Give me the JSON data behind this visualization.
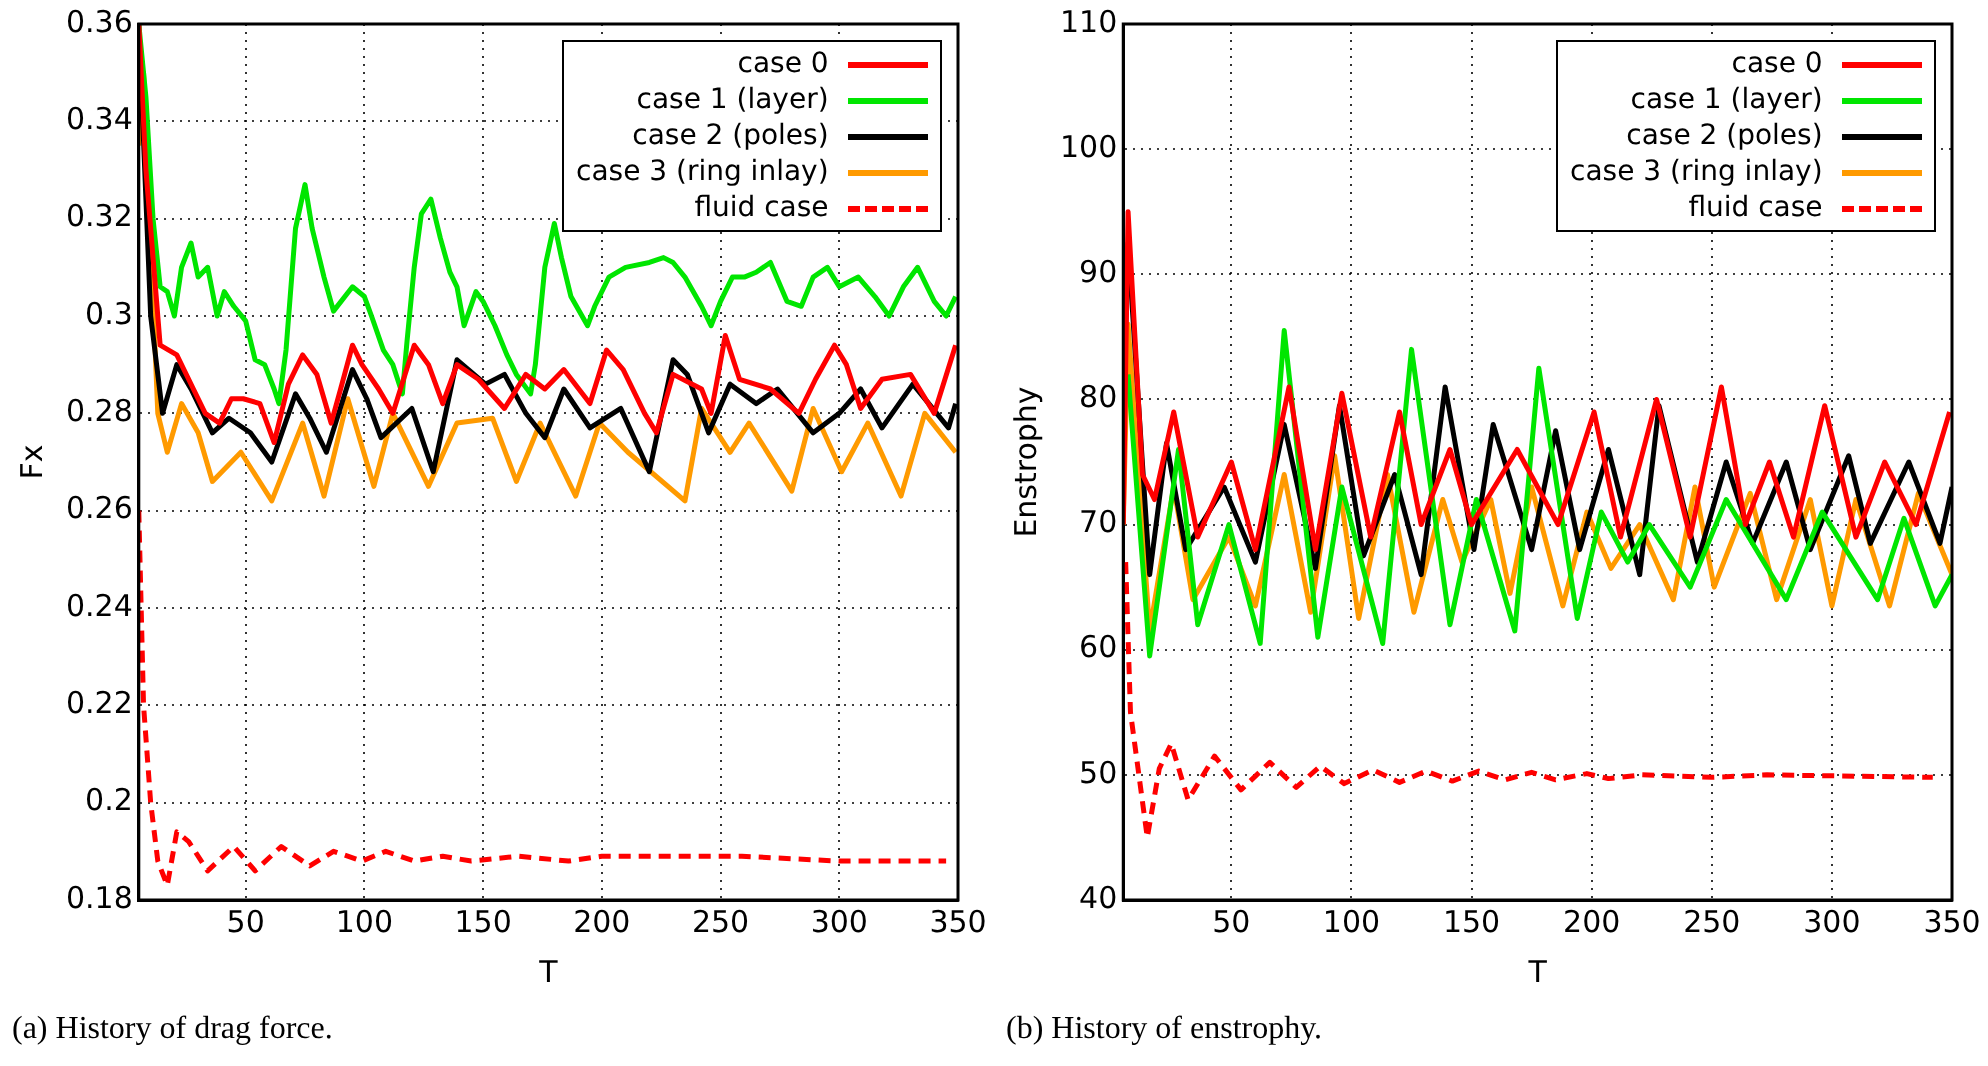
{
  "chart_data": [
    {
      "type": "line",
      "xlabel": "T",
      "ylabel": "Fx",
      "xlim": [
        5,
        350
      ],
      "xticks": [
        50,
        100,
        150,
        200,
        250,
        300,
        350
      ],
      "ylim": [
        0.18,
        0.36
      ],
      "yticks": [
        0.18,
        0.2,
        0.22,
        0.24,
        0.26,
        0.28,
        0.3,
        0.32,
        0.34,
        0.36
      ],
      "grid": true,
      "legend": "top right",
      "marker": "none",
      "annotations": [
        "(a) History of drag force."
      ],
      "series": [
        {
          "name": "case 0",
          "color": "#ff0000",
          "x": [
            5,
            8,
            14,
            21,
            28,
            33,
            39,
            44,
            49,
            56,
            62,
            68,
            74,
            80,
            86,
            90,
            95,
            99,
            106,
            112,
            121,
            127,
            133,
            139,
            148,
            159,
            168,
            176,
            184,
            195,
            202,
            209,
            218,
            223,
            230,
            242,
            246,
            252,
            258,
            271,
            283,
            290,
            298,
            303,
            309,
            318,
            330,
            340,
            349
          ],
          "values": [
            0.36,
            0.33,
            0.294,
            0.292,
            0.285,
            0.28,
            0.278,
            0.283,
            0.283,
            0.282,
            0.274,
            0.286,
            0.292,
            0.288,
            0.278,
            0.285,
            0.294,
            0.29,
            0.285,
            0.28,
            0.294,
            0.29,
            0.282,
            0.29,
            0.287,
            0.281,
            0.288,
            0.285,
            0.289,
            0.282,
            0.293,
            0.289,
            0.28,
            0.276,
            0.288,
            0.285,
            0.28,
            0.296,
            0.287,
            0.285,
            0.28,
            0.287,
            0.294,
            0.29,
            0.281,
            0.287,
            0.288,
            0.28,
            0.294
          ]
        },
        {
          "name": "case 1 (layer)",
          "color": "#00e600",
          "x": [
            5,
            8,
            11,
            14,
            17,
            20,
            23,
            27,
            30,
            34,
            38,
            41,
            45,
            50,
            54,
            58,
            62,
            64,
            67,
            71,
            75,
            78,
            83,
            87,
            95,
            100,
            103,
            108,
            112,
            116,
            118,
            121,
            124,
            128,
            132,
            136,
            139,
            142,
            147,
            150,
            155,
            160,
            164,
            170,
            172,
            176,
            180,
            183,
            187,
            194,
            197,
            203,
            210,
            220,
            226,
            230,
            235,
            242,
            246,
            250,
            255,
            260,
            265,
            271,
            278,
            284,
            289,
            295,
            300,
            308,
            315,
            321,
            327,
            333,
            340,
            345,
            349
          ],
          "values": [
            0.36,
            0.345,
            0.32,
            0.306,
            0.305,
            0.3,
            0.31,
            0.315,
            0.308,
            0.31,
            0.3,
            0.305,
            0.302,
            0.299,
            0.291,
            0.29,
            0.285,
            0.282,
            0.293,
            0.318,
            0.327,
            0.318,
            0.308,
            0.301,
            0.306,
            0.304,
            0.3,
            0.293,
            0.29,
            0.284,
            0.295,
            0.31,
            0.321,
            0.324,
            0.316,
            0.309,
            0.306,
            0.298,
            0.305,
            0.303,
            0.298,
            0.292,
            0.288,
            0.284,
            0.29,
            0.31,
            0.319,
            0.312,
            0.304,
            0.298,
            0.302,
            0.308,
            0.31,
            0.311,
            0.312,
            0.311,
            0.308,
            0.302,
            0.298,
            0.303,
            0.308,
            0.308,
            0.309,
            0.311,
            0.303,
            0.302,
            0.308,
            0.31,
            0.306,
            0.308,
            0.304,
            0.3,
            0.306,
            0.31,
            0.303,
            0.3,
            0.304
          ]
        },
        {
          "name": "case 2 (poles)",
          "color": "#000000",
          "x": [
            5,
            10,
            15,
            21,
            27,
            36,
            43,
            52,
            61,
            71,
            77,
            84,
            95,
            101,
            107,
            120,
            129,
            139,
            151,
            159,
            168,
            176,
            184,
            195,
            208,
            220,
            230,
            236,
            245,
            254,
            265,
            274,
            289,
            300,
            309,
            318,
            331,
            346,
            349
          ],
          "values": [
            0.36,
            0.3,
            0.28,
            0.29,
            0.285,
            0.276,
            0.279,
            0.276,
            0.27,
            0.284,
            0.279,
            0.272,
            0.289,
            0.283,
            0.275,
            0.281,
            0.268,
            0.291,
            0.286,
            0.288,
            0.28,
            0.275,
            0.285,
            0.277,
            0.281,
            0.268,
            0.291,
            0.288,
            0.276,
            0.286,
            0.282,
            0.285,
            0.276,
            0.28,
            0.285,
            0.277,
            0.286,
            0.277,
            0.282
          ]
        },
        {
          "name": "case 3 (ring inlay)",
          "color": "#ff9a00",
          "x": [
            5,
            7,
            13,
            17,
            23,
            30,
            36,
            48,
            61,
            74,
            83,
            93,
            104,
            112,
            127,
            139,
            154,
            164,
            174,
            189,
            199,
            211,
            235,
            242,
            254,
            262,
            280,
            289,
            301,
            312,
            326,
            336,
            349
          ],
          "values": [
            0.335,
            0.35,
            0.28,
            0.272,
            0.282,
            0.276,
            0.266,
            0.272,
            0.262,
            0.278,
            0.263,
            0.283,
            0.265,
            0.28,
            0.265,
            0.278,
            0.279,
            0.266,
            0.278,
            0.263,
            0.278,
            0.272,
            0.262,
            0.281,
            0.272,
            0.278,
            0.264,
            0.281,
            0.268,
            0.278,
            0.263,
            0.28,
            0.272
          ]
        },
        {
          "name": "fluid case",
          "color": "#ff0000",
          "line_style": "dashed",
          "x": [
            5,
            7,
            10,
            13,
            17,
            21,
            26,
            34,
            45,
            54,
            65,
            77,
            87,
            99,
            109,
            121,
            133,
            145,
            165,
            186,
            200,
            230,
            259,
            300,
            345
          ],
          "values": [
            0.26,
            0.22,
            0.2,
            0.188,
            0.183,
            0.194,
            0.192,
            0.186,
            0.191,
            0.186,
            0.191,
            0.187,
            0.19,
            0.188,
            0.19,
            0.188,
            0.189,
            0.188,
            0.189,
            0.188,
            0.189,
            0.189,
            0.189,
            0.188,
            0.188
          ]
        }
      ]
    },
    {
      "type": "line",
      "xlabel": "T",
      "ylabel": "Enstrophy",
      "xlim": [
        5,
        350
      ],
      "xticks": [
        50,
        100,
        150,
        200,
        250,
        300,
        350
      ],
      "ylim": [
        40,
        110
      ],
      "yticks": [
        40,
        50,
        60,
        70,
        80,
        90,
        100,
        110
      ],
      "grid": true,
      "legend": "top right",
      "marker": "none",
      "annotations": [
        "(b) History of enstrophy."
      ],
      "series": [
        {
          "name": "case 0",
          "color": "#ff0000",
          "x": [
            5,
            7,
            13,
            18,
            26,
            36,
            50,
            60,
            74,
            85,
            96,
            108,
            120,
            129,
            141,
            150,
            169,
            186,
            201,
            212,
            227,
            241,
            254,
            264,
            274,
            284,
            297,
            310,
            322,
            335,
            349
          ],
          "values": [
            70,
            95,
            74,
            72,
            79,
            69,
            75,
            68,
            81,
            68,
            80.5,
            69,
            79,
            70,
            76,
            70,
            76,
            70,
            79,
            69,
            80,
            69,
            81,
            70,
            75,
            69,
            79.5,
            69,
            75,
            70,
            79
          ]
        },
        {
          "name": "case 1 (layer)",
          "color": "#00e600",
          "x": [
            7,
            16,
            28,
            36,
            49,
            62,
            72,
            86,
            96,
            113,
            125,
            141,
            152,
            168,
            178,
            194,
            204,
            215,
            224,
            241,
            256,
            281,
            296,
            319,
            330,
            343,
            350
          ],
          "values": [
            82,
            59.5,
            76,
            62,
            70,
            60.5,
            85.5,
            61,
            73,
            60.5,
            84,
            62,
            72,
            61.5,
            82.5,
            62.5,
            71,
            67,
            70,
            65,
            72,
            64,
            71,
            64,
            70.5,
            63.5,
            66
          ]
        },
        {
          "name": "case 2 (poles)",
          "color": "#000000",
          "x": [
            5,
            7,
            16,
            23,
            31,
            47,
            60,
            72,
            85,
            95,
            105,
            118,
            129,
            139,
            151,
            159,
            175,
            185,
            195,
            207,
            220,
            228,
            244,
            256,
            267,
            281,
            291,
            307,
            316,
            332,
            345,
            350
          ],
          "values": [
            80,
            92.5,
            66,
            76.5,
            68,
            73,
            67,
            78,
            66.5,
            79.5,
            67.5,
            74,
            66,
            81,
            68,
            78,
            68,
            77.5,
            68,
            76,
            66,
            79.5,
            67,
            75,
            68.5,
            75,
            68,
            75.5,
            68.5,
            75,
            68.5,
            73
          ]
        },
        {
          "name": "case 3 (ring inlay)",
          "color": "#ff9a00",
          "x": [
            5,
            7,
            16,
            26,
            34,
            49,
            60,
            72,
            83,
            93,
            103,
            115,
            126,
            138,
            146,
            158,
            166,
            175,
            188,
            198,
            208,
            220,
            234,
            243,
            251,
            266,
            277,
            291,
            300,
            310,
            324,
            336,
            350
          ],
          "values": [
            70,
            86,
            61.5,
            73,
            64,
            69,
            63.5,
            74,
            63,
            75.5,
            62.5,
            74,
            63,
            72,
            67,
            72,
            64.5,
            73,
            63.5,
            71,
            66.5,
            70,
            64,
            73,
            65,
            72.5,
            64,
            72,
            63.5,
            72,
            63.5,
            72.5,
            66
          ]
        },
        {
          "name": "fluid case",
          "color": "#ff0000",
          "line_style": "dashed",
          "x": [
            6,
            8,
            15,
            20,
            25,
            32,
            43,
            54,
            66,
            77,
            87,
            97,
            109,
            120,
            131,
            142,
            153,
            164,
            175,
            185,
            198,
            207,
            221,
            250,
            273,
            342
          ],
          "values": [
            67,
            55,
            45,
            50.5,
            52.5,
            48,
            51.5,
            48.8,
            51,
            49,
            50.7,
            49.3,
            50.4,
            49.4,
            50.3,
            49.5,
            50.3,
            49.6,
            50.2,
            49.6,
            50.1,
            49.7,
            50,
            49.8,
            50,
            49.8
          ]
        }
      ]
    }
  ]
}
